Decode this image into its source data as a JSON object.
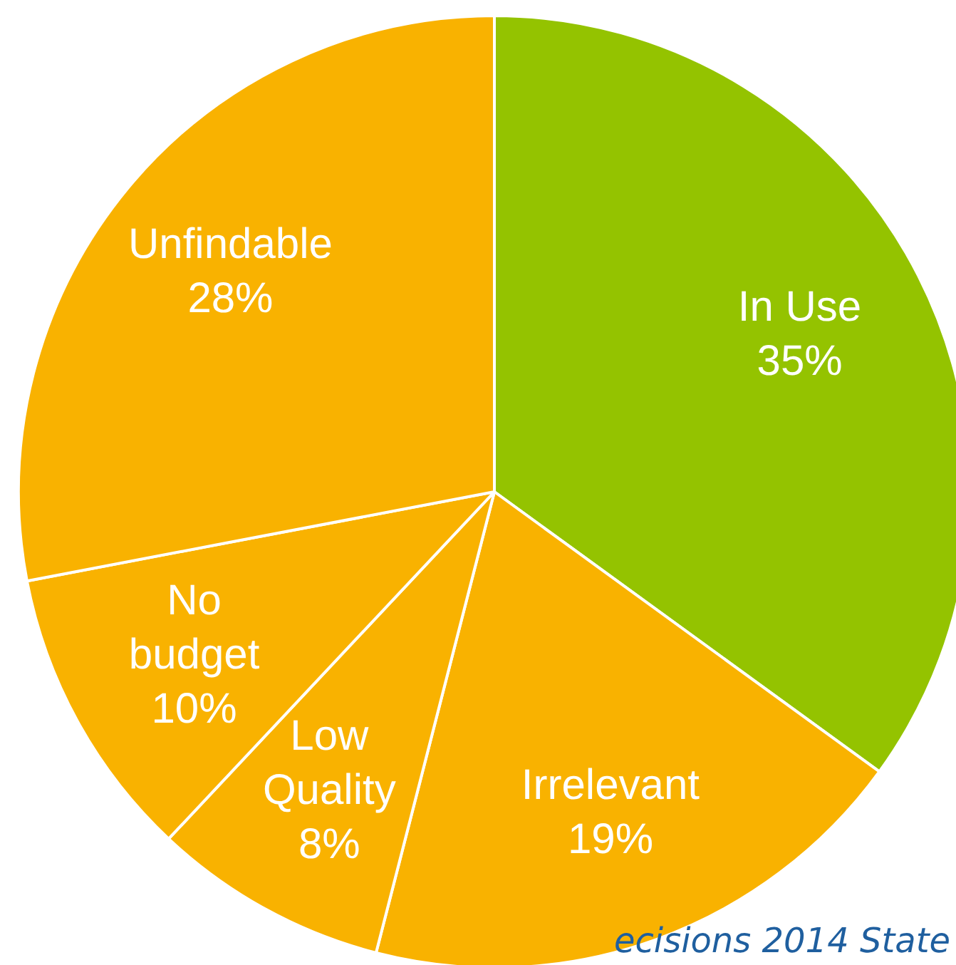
{
  "chart_data": {
    "type": "pie",
    "categories": [
      "In Use",
      "Irrelevant",
      "Low Quality",
      "No budget",
      "Unfindable"
    ],
    "values": [
      35,
      19,
      8,
      10,
      28
    ],
    "colors": [
      "#94c300",
      "#f9b200",
      "#f9b200",
      "#f9b200",
      "#f9b200"
    ],
    "value_labels": [
      "35%",
      "19%",
      "8%",
      "10%",
      "28%"
    ],
    "legend": false,
    "annotations": [
      "ecisions 2014 State"
    ]
  }
}
